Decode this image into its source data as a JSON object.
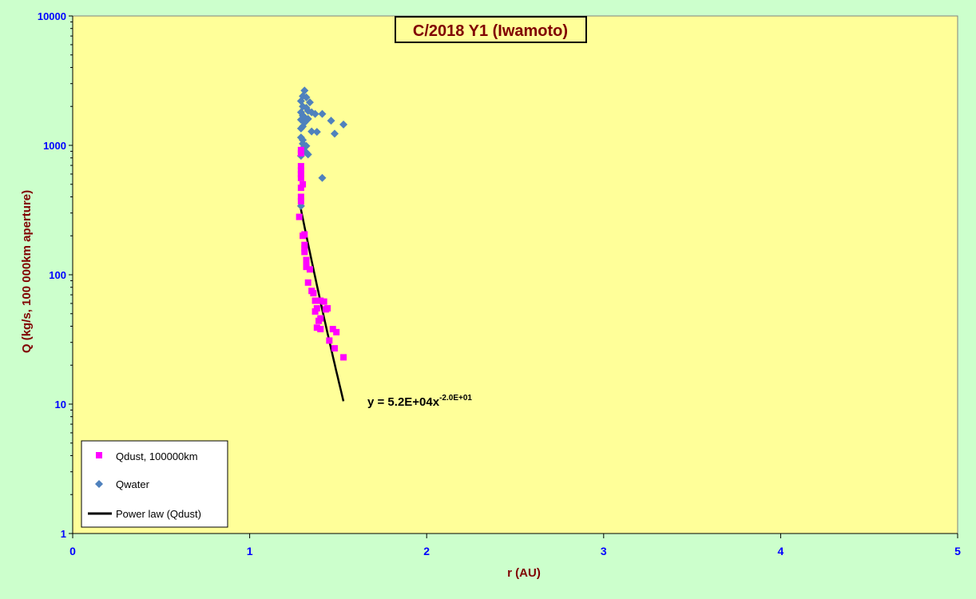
{
  "chart_data": {
    "type": "scatter",
    "title": "C/2018 Y1 (Iwamoto)",
    "xlabel": "r (AU)",
    "ylabel": "Q (kg/s, 100 000km aperture)",
    "xlim": [
      0,
      5
    ],
    "ylim": [
      1,
      10000
    ],
    "yscale": "log",
    "x_ticks": [
      "0",
      "1",
      "2",
      "3",
      "4",
      "5"
    ],
    "y_ticks": [
      "1",
      "10",
      "100",
      "1000",
      "10000"
    ],
    "grid": false,
    "legend_position": "bottom-left",
    "colors": {
      "page_background": "#ccffcc",
      "plot_background": "#ffff99",
      "title_color": "#800000",
      "axis_label_color": "#800000",
      "tick_label_color": "#0000ff",
      "qdust": "#ff00ff",
      "qwater": "#4f81bd",
      "fit": "#000000"
    },
    "series": [
      {
        "name": "Qdust, 100000km",
        "marker": "square",
        "color": "#ff00ff",
        "points": [
          [
            1.29,
            920
          ],
          [
            1.29,
            870
          ],
          [
            1.29,
            690
          ],
          [
            1.29,
            640
          ],
          [
            1.29,
            600
          ],
          [
            1.29,
            560
          ],
          [
            1.3,
            500
          ],
          [
            1.29,
            470
          ],
          [
            1.29,
            400
          ],
          [
            1.29,
            370
          ],
          [
            1.28,
            280
          ],
          [
            1.3,
            200
          ],
          [
            1.31,
            205
          ],
          [
            1.31,
            170
          ],
          [
            1.31,
            160
          ],
          [
            1.31,
            150
          ],
          [
            1.32,
            130
          ],
          [
            1.32,
            120
          ],
          [
            1.32,
            115
          ],
          [
            1.34,
            110
          ],
          [
            1.33,
            87
          ],
          [
            1.35,
            75
          ],
          [
            1.36,
            72
          ],
          [
            1.37,
            63
          ],
          [
            1.4,
            63
          ],
          [
            1.42,
            62
          ],
          [
            1.38,
            55
          ],
          [
            1.37,
            52
          ],
          [
            1.43,
            54
          ],
          [
            1.44,
            55
          ],
          [
            1.39,
            44
          ],
          [
            1.4,
            46
          ],
          [
            1.38,
            39
          ],
          [
            1.4,
            38
          ],
          [
            1.47,
            38
          ],
          [
            1.49,
            36
          ],
          [
            1.45,
            31
          ],
          [
            1.48,
            27
          ],
          [
            1.53,
            23
          ]
        ]
      },
      {
        "name": "Qwater",
        "marker": "diamond",
        "color": "#4f81bd",
        "points": [
          [
            1.31,
            2650
          ],
          [
            1.3,
            2400
          ],
          [
            1.32,
            2350
          ],
          [
            1.29,
            2200
          ],
          [
            1.34,
            2150
          ],
          [
            1.3,
            2000
          ],
          [
            1.32,
            1950
          ],
          [
            1.33,
            1850
          ],
          [
            1.35,
            1800
          ],
          [
            1.29,
            1800
          ],
          [
            1.37,
            1750
          ],
          [
            1.41,
            1750
          ],
          [
            1.3,
            1700
          ],
          [
            1.31,
            1650
          ],
          [
            1.33,
            1600
          ],
          [
            1.29,
            1580
          ],
          [
            1.46,
            1550
          ],
          [
            1.31,
            1500
          ],
          [
            1.53,
            1450
          ],
          [
            1.3,
            1400
          ],
          [
            1.29,
            1350
          ],
          [
            1.35,
            1280
          ],
          [
            1.38,
            1270
          ],
          [
            1.48,
            1230
          ],
          [
            1.29,
            1150
          ],
          [
            1.3,
            1100
          ],
          [
            1.3,
            1030
          ],
          [
            1.31,
            1000
          ],
          [
            1.32,
            990
          ],
          [
            1.3,
            950
          ],
          [
            1.32,
            880
          ],
          [
            1.33,
            850
          ],
          [
            1.29,
            830
          ],
          [
            1.41,
            560
          ],
          [
            1.29,
            340
          ]
        ]
      },
      {
        "name": "Power law (Qdust)",
        "type": "line",
        "color": "#000000",
        "x_range": [
          1.28,
          1.53
        ],
        "coefficient": 52000,
        "exponent": -20.0
      }
    ],
    "annotation": {
      "equation": "y = 5.2E+04x",
      "exponent": "-2.0E+01"
    }
  }
}
